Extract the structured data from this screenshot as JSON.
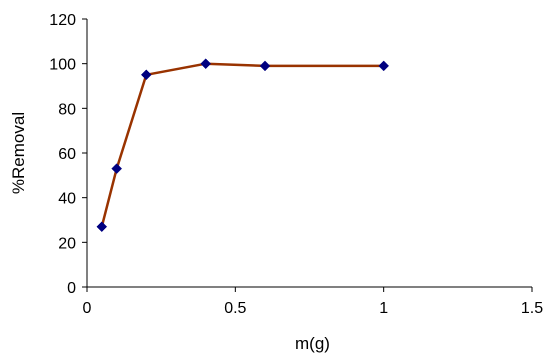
{
  "chart_data": {
    "type": "line",
    "title": "",
    "xlabel": "m(g)",
    "ylabel": "%Removal",
    "xlim": [
      0,
      1.5
    ],
    "ylim": [
      0,
      120
    ],
    "xticks": [
      0,
      0.5,
      1,
      1.5
    ],
    "yticks": [
      0,
      20,
      40,
      60,
      80,
      100,
      120
    ],
    "xtick_labels": [
      "0",
      "0.5",
      "1",
      "1.5"
    ],
    "ytick_labels": [
      "0",
      "20",
      "40",
      "60",
      "80",
      "100",
      "120"
    ],
    "grid": false,
    "legend": "none",
    "series": [
      {
        "x": [
          0.05,
          0.1,
          0.2,
          0.4,
          0.6,
          1.0
        ],
        "y": [
          27,
          53,
          95,
          100,
          99,
          99
        ],
        "line_color": "#993300",
        "marker_color": "#000080",
        "marker": "diamond"
      }
    ]
  }
}
